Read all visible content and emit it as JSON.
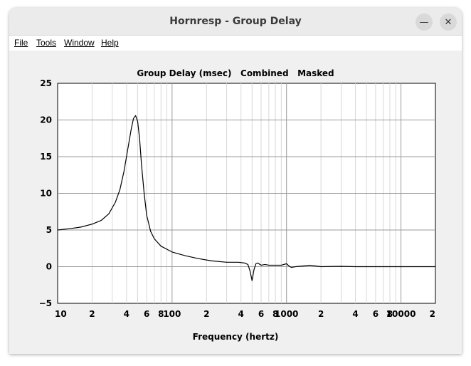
{
  "window": {
    "title": "Hornresp - Group Delay",
    "minimize_glyph": "—",
    "close_glyph": "✕"
  },
  "menu": {
    "items": [
      "File",
      "Tools",
      "Window",
      "Help"
    ]
  },
  "chart_data": {
    "type": "line",
    "title": "Group Delay (msec)   Combined   Masked",
    "xlabel": "Frequency (hertz)",
    "ylabel": "",
    "x_scale": "log",
    "xlim": [
      10,
      20000
    ],
    "ylim": [
      -5,
      25
    ],
    "grid": true,
    "y_ticks": [
      25,
      20,
      15,
      10,
      5,
      0,
      -5
    ],
    "y_tick_labels": [
      "25",
      "20",
      "15",
      "10",
      "5",
      "0",
      "−5"
    ],
    "x_tick_labels": [
      {
        "x": 10,
        "label": "10"
      },
      {
        "x": 20,
        "label": "2"
      },
      {
        "x": 40,
        "label": "4"
      },
      {
        "x": 60,
        "label": "6"
      },
      {
        "x": 80,
        "label": "8"
      },
      {
        "x": 100,
        "label": "100"
      },
      {
        "x": 200,
        "label": "2"
      },
      {
        "x": 400,
        "label": "4"
      },
      {
        "x": 600,
        "label": "6"
      },
      {
        "x": 800,
        "label": "8"
      },
      {
        "x": 1000,
        "label": "1000"
      },
      {
        "x": 2000,
        "label": "2"
      },
      {
        "x": 4000,
        "label": "4"
      },
      {
        "x": 6000,
        "label": "6"
      },
      {
        "x": 8000,
        "label": "8"
      },
      {
        "x": 10000,
        "label": "10000"
      },
      {
        "x": 20000,
        "label": "2"
      }
    ],
    "series": [
      {
        "color": "#000000",
        "x": [
          10,
          13,
          16,
          20,
          24,
          28,
          32,
          35,
          38,
          41,
          44,
          46,
          48,
          50,
          52,
          54,
          57,
          60,
          65,
          70,
          80,
          100,
          130,
          170,
          220,
          300,
          380,
          430,
          460,
          480,
          500,
          520,
          540,
          560,
          600,
          650,
          700,
          800,
          900,
          1000,
          1050,
          1100,
          1200,
          1400,
          1600,
          2000,
          3000,
          4000,
          5000,
          7000,
          10000,
          20000
        ],
        "y": [
          5.0,
          5.2,
          5.4,
          5.8,
          6.3,
          7.2,
          8.8,
          10.5,
          13.0,
          16.0,
          18.8,
          20.2,
          20.6,
          19.8,
          17.5,
          14.0,
          10.0,
          7.0,
          4.8,
          3.8,
          2.8,
          2.0,
          1.5,
          1.1,
          0.8,
          0.6,
          0.6,
          0.5,
          0.3,
          -0.6,
          -1.9,
          -0.4,
          0.4,
          0.5,
          0.2,
          0.3,
          0.2,
          0.2,
          0.2,
          0.4,
          0.1,
          -0.1,
          0.0,
          0.1,
          0.2,
          0.0,
          0.05,
          0.0,
          0.0,
          0.0,
          0.0,
          0.0
        ]
      }
    ]
  }
}
